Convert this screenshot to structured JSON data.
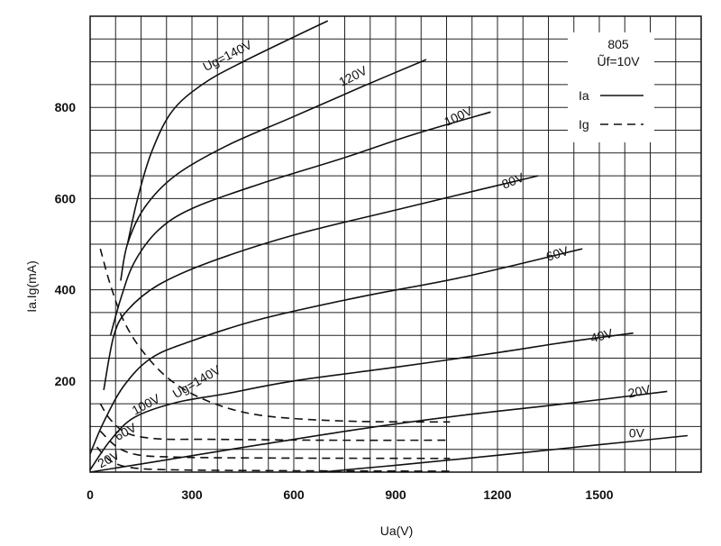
{
  "chart_data": {
    "type": "line",
    "xlabel": "Ua(V)",
    "ylabel": "Ia.Ig(mA)",
    "xlim": [
      0,
      1800
    ],
    "ylim": [
      0,
      1000
    ],
    "x_ticks": [
      0,
      300,
      600,
      900,
      1200,
      1500
    ],
    "y_ticks": [
      200,
      400,
      600,
      800
    ],
    "grid": true,
    "legend": {
      "position": "top-right",
      "title_lines": [
        "805",
        "Ũf=10V"
      ],
      "entries": [
        {
          "label": "Ia",
          "style": "solid"
        },
        {
          "label": "Ig",
          "style": "dashed"
        }
      ]
    },
    "series": [
      {
        "name": "Ia",
        "label": "0V",
        "style": "solid",
        "points": [
          [
            680,
            0
          ],
          [
            900,
            15
          ],
          [
            1200,
            37
          ],
          [
            1500,
            60
          ],
          [
            1760,
            80
          ]
        ]
      },
      {
        "name": "Ia",
        "label": "20V",
        "style": "solid",
        "points": [
          [
            0,
            0
          ],
          [
            200,
            24
          ],
          [
            500,
            60
          ],
          [
            800,
            95
          ],
          [
            1100,
            125
          ],
          [
            1400,
            150
          ],
          [
            1700,
            177
          ]
        ]
      },
      {
        "name": "Ia",
        "label": "40V",
        "style": "solid",
        "points": [
          [
            0,
            5
          ],
          [
            60,
            70
          ],
          [
            130,
            120
          ],
          [
            250,
            152
          ],
          [
            400,
            172
          ],
          [
            600,
            200
          ],
          [
            900,
            230
          ],
          [
            1200,
            262
          ],
          [
            1400,
            285
          ],
          [
            1600,
            305
          ]
        ]
      },
      {
        "name": "Ia",
        "label": "60V",
        "style": "solid",
        "points": [
          [
            0,
            40
          ],
          [
            40,
            110
          ],
          [
            100,
            190
          ],
          [
            180,
            250
          ],
          [
            300,
            288
          ],
          [
            500,
            335
          ],
          [
            800,
            385
          ],
          [
            1100,
            428
          ],
          [
            1450,
            490
          ]
        ]
      },
      {
        "name": "Ia",
        "label": "80V",
        "style": "solid",
        "points": [
          [
            40,
            180
          ],
          [
            70,
            300
          ],
          [
            110,
            355
          ],
          [
            200,
            410
          ],
          [
            350,
            460
          ],
          [
            600,
            520
          ],
          [
            900,
            575
          ],
          [
            1150,
            620
          ],
          [
            1320,
            650
          ]
        ]
      },
      {
        "name": "Ia",
        "label": "100V",
        "style": "solid",
        "points": [
          [
            60,
            300
          ],
          [
            90,
            380
          ],
          [
            130,
            460
          ],
          [
            200,
            530
          ],
          [
            300,
            578
          ],
          [
            500,
            632
          ],
          [
            750,
            690
          ],
          [
            950,
            740
          ],
          [
            1180,
            790
          ]
        ]
      },
      {
        "name": "Ia",
        "label": "120V",
        "style": "solid",
        "points": [
          [
            90,
            420
          ],
          [
            110,
            500
          ],
          [
            160,
            580
          ],
          [
            250,
            650
          ],
          [
            400,
            715
          ],
          [
            600,
            780
          ],
          [
            800,
            845
          ],
          [
            990,
            905
          ]
        ]
      },
      {
        "name": "Ia",
        "label": "Ug=140V",
        "style": "solid",
        "points": [
          [
            110,
            500
          ],
          [
            140,
            600
          ],
          [
            180,
            700
          ],
          [
            240,
            790
          ],
          [
            330,
            850
          ],
          [
            450,
            900
          ],
          [
            700,
            990
          ]
        ]
      },
      {
        "name": "Ig",
        "label": "20V",
        "style": "dashed",
        "points": [
          [
            20,
            55
          ],
          [
            60,
            25
          ],
          [
            120,
            10
          ],
          [
            250,
            5
          ],
          [
            600,
            3
          ],
          [
            1060,
            2
          ]
        ]
      },
      {
        "name": "Ig",
        "label": "60V",
        "style": "dashed",
        "points": [
          [
            30,
            90
          ],
          [
            80,
            55
          ],
          [
            140,
            38
          ],
          [
            250,
            33
          ],
          [
            500,
            31
          ],
          [
            1060,
            30
          ]
        ]
      },
      {
        "name": "Ig",
        "label": "100V",
        "style": "dashed",
        "points": [
          [
            30,
            150
          ],
          [
            60,
            115
          ],
          [
            110,
            85
          ],
          [
            200,
            73
          ],
          [
            350,
            72
          ],
          [
            700,
            70
          ],
          [
            1060,
            70
          ]
        ]
      },
      {
        "name": "Ig",
        "label": "Ug=140V",
        "style": "dashed",
        "points": [
          [
            30,
            490
          ],
          [
            60,
            410
          ],
          [
            100,
            330
          ],
          [
            160,
            260
          ],
          [
            240,
            200
          ],
          [
            350,
            155
          ],
          [
            500,
            125
          ],
          [
            750,
            112
          ],
          [
            1060,
            110
          ]
        ]
      }
    ],
    "annotations": [
      {
        "text": "Ug=140V",
        "x": 410,
        "y": 905,
        "rotate": -27,
        "series_style": "solid"
      },
      {
        "text": "120V",
        "x": 780,
        "y": 860,
        "rotate": -27
      },
      {
        "text": "100V",
        "x": 1090,
        "y": 772,
        "rotate": -25
      },
      {
        "text": "80V",
        "x": 1250,
        "y": 630,
        "rotate": -22
      },
      {
        "text": "60V",
        "x": 1380,
        "y": 470,
        "rotate": -18
      },
      {
        "text": "40V",
        "x": 1510,
        "y": 290,
        "rotate": -15
      },
      {
        "text": "20V",
        "x": 1620,
        "y": 168,
        "rotate": -12
      },
      {
        "text": "0V",
        "x": 1610,
        "y": 76,
        "rotate": 0
      },
      {
        "text": "Ug=140V",
        "x": 320,
        "y": 190,
        "rotate": -30
      },
      {
        "text": "100V",
        "x": 170,
        "y": 140,
        "rotate": -28
      },
      {
        "text": "60V",
        "x": 110,
        "y": 80,
        "rotate": -28
      },
      {
        "text": "20V",
        "x": 60,
        "y": 20,
        "rotate": -28
      }
    ]
  }
}
